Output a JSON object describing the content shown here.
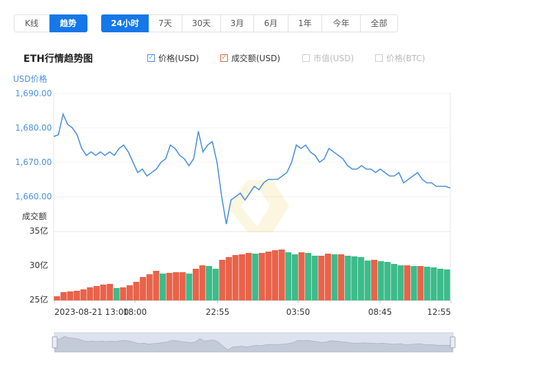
{
  "type_tabs": [
    {
      "label": "K线",
      "active": false
    },
    {
      "label": "趋势",
      "active": true
    }
  ],
  "range_tabs": [
    {
      "label": "24小时",
      "active": true
    },
    {
      "label": "7天",
      "active": false
    },
    {
      "label": "30天",
      "active": false
    },
    {
      "label": "3月",
      "active": false
    },
    {
      "label": "6月",
      "active": false
    },
    {
      "label": "1年",
      "active": false
    },
    {
      "label": "今年",
      "active": false
    },
    {
      "label": "全部",
      "active": false
    }
  ],
  "chart_title": "ETH行情趋势图",
  "legend": [
    {
      "label": "价格(USD)",
      "checked": true,
      "color": "#4a90e2",
      "text_color": "#333333"
    },
    {
      "label": "成交额(USD)",
      "checked": true,
      "color": "#e8634a",
      "text_color": "#333333"
    },
    {
      "label": "市值(USD)",
      "checked": false,
      "color": "#cccccc",
      "text_color": "#bbbbbb"
    },
    {
      "label": "价格(BTC)",
      "checked": false,
      "color": "#cccccc",
      "text_color": "#bbbbbb"
    }
  ],
  "chart_data": {
    "type": "line",
    "colors": {
      "price_line": "#4a90e2",
      "volume_up": "#e8634a",
      "volume_down": "#3dbb8a",
      "axis_text": "#4a90e2"
    },
    "price_axis": {
      "label": "USD价格",
      "ticks": [
        "1,690.00",
        "1,680.00",
        "1,670.00",
        "1,660.00"
      ],
      "ylim": [
        1656,
        1690
      ]
    },
    "volume_axis": {
      "label": "成交额",
      "ticks": [
        "35亿",
        "30亿",
        "25亿"
      ],
      "ylim": [
        25,
        35
      ]
    },
    "x_ticks": [
      "2023-08-21 13:00",
      "18:00",
      "22:55",
      "03:50",
      "08:45",
      "12:55"
    ],
    "price": {
      "name": "价格(USD)",
      "values": [
        1677.5,
        1678,
        1684,
        1681,
        1680,
        1678,
        1674,
        1672,
        1673,
        1672,
        1673,
        1672,
        1673,
        1672,
        1674,
        1675,
        1673,
        1670,
        1667,
        1668,
        1666,
        1667,
        1668,
        1670,
        1671,
        1675,
        1674,
        1672,
        1671,
        1669,
        1671,
        1679,
        1673,
        1675,
        1676,
        1670,
        1660,
        1652,
        1659,
        1660,
        1661,
        1659,
        1661,
        1663,
        1662,
        1664,
        1665,
        1665,
        1665,
        1666,
        1667,
        1670,
        1675,
        1674,
        1675,
        1673,
        1672,
        1670,
        1671,
        1674,
        1673,
        1672,
        1671,
        1669,
        1668,
        1668,
        1669,
        1668,
        1668,
        1667,
        1668,
        1667,
        1666,
        1666,
        1667,
        1664,
        1665,
        1666,
        1667,
        1665,
        1664,
        1664,
        1663,
        1663,
        1663,
        1662.5
      ]
    },
    "volume": {
      "name": "成交额(USD)",
      "values": [
        25.6,
        26.2,
        26.3,
        26.4,
        26.6,
        26.9,
        27.1,
        27.3,
        27.4,
        26.8,
        26.9,
        27.2,
        27.7,
        28.4,
        28.8,
        29.3,
        28.9,
        29.0,
        29.1,
        29.1,
        28.9,
        29.6,
        30.1,
        30.0,
        29.6,
        30.9,
        31.3,
        31.6,
        31.7,
        31.9,
        31.8,
        31.9,
        32.1,
        32.3,
        32.4,
        32.0,
        31.7,
        32.0,
        31.9,
        31.5,
        31.5,
        31.8,
        31.7,
        31.7,
        31.5,
        31.4,
        31.3,
        30.8,
        30.9,
        30.7,
        30.6,
        30.3,
        30.1,
        30.1,
        30.0,
        30.0,
        29.9,
        29.8,
        29.6,
        29.5
      ]
    }
  }
}
